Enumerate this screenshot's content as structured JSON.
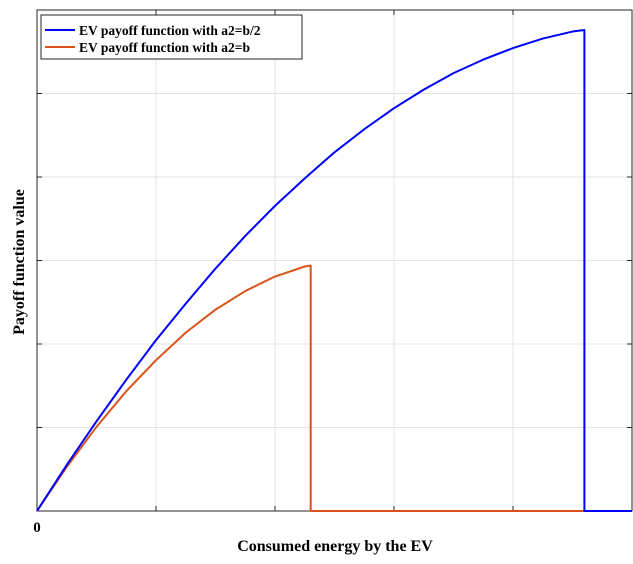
{
  "chart_data": {
    "type": "line",
    "xlabel": "Consumed energy by the EV",
    "ylabel": "Payoff function value",
    "x_tick_labels": [
      "0"
    ],
    "xlim": [
      0,
      1
    ],
    "ylim": [
      0,
      1
    ],
    "grid": true,
    "legend_position": "top-left",
    "series": [
      {
        "name": "EV payoff function with a2=b/2",
        "color": "#0000ff",
        "x": [
          0,
          0.05,
          0.1,
          0.15,
          0.2,
          0.25,
          0.3,
          0.35,
          0.4,
          0.45,
          0.5,
          0.55,
          0.6,
          0.65,
          0.7,
          0.75,
          0.8,
          0.85,
          0.9,
          0.92,
          0.92,
          1.0
        ],
        "y": [
          0,
          0.092,
          0.179,
          0.262,
          0.341,
          0.414,
          0.484,
          0.549,
          0.609,
          0.664,
          0.716,
          0.762,
          0.804,
          0.841,
          0.874,
          0.901,
          0.924,
          0.943,
          0.957,
          0.96,
          0,
          0
        ]
      },
      {
        "name": "EV payoff function with a2=b",
        "color": "#d95319",
        "x": [
          0,
          0.05,
          0.1,
          0.15,
          0.2,
          0.25,
          0.3,
          0.35,
          0.4,
          0.45,
          0.46,
          0.46,
          1.0
        ],
        "y": [
          0,
          0.088,
          0.168,
          0.239,
          0.301,
          0.356,
          0.402,
          0.439,
          0.468,
          0.488,
          0.49,
          0,
          0
        ]
      }
    ]
  }
}
